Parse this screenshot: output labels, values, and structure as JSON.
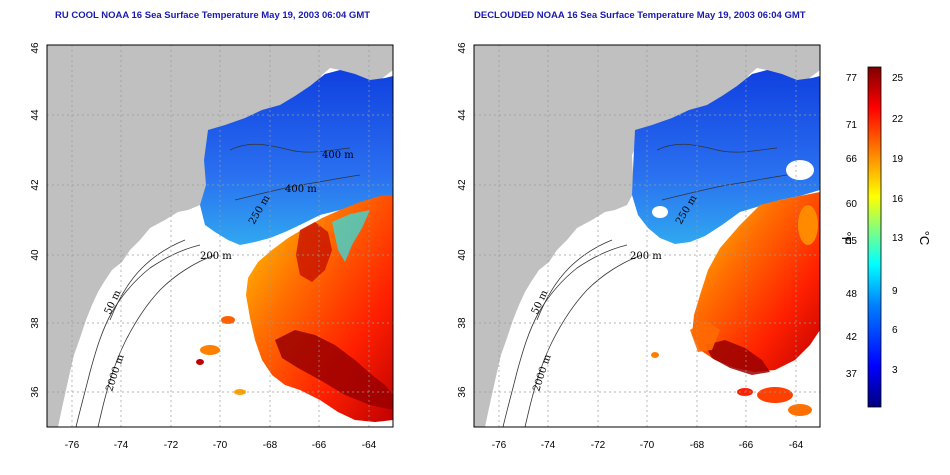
{
  "panels": [
    {
      "title": "RU COOL NOAA 16 Sea Surface Temperature May 19, 2003 06:04 GMT"
    },
    {
      "title": "DECLOUDED NOAA 16 Sea Surface Temperature May 19, 2003 06:04 GMT"
    }
  ],
  "axes": {
    "x_ticks": [
      "-76",
      "-74",
      "-72",
      "-70",
      "-68",
      "-66",
      "-64"
    ],
    "y_ticks": [
      "36",
      "38",
      "40",
      "42",
      "44",
      "46"
    ]
  },
  "contour_labels": [
    "200 m",
    "50 m",
    "2000 m",
    "400 m",
    "250 m",
    "400 m"
  ],
  "colorbar": {
    "fahrenheit_ticks": [
      "77",
      "71",
      "66",
      "60",
      "55",
      "48",
      "42",
      "37"
    ],
    "celsius_ticks": [
      "25",
      "22",
      "19",
      "16",
      "13",
      "9",
      "6",
      "3"
    ],
    "fahrenheit_unit": "°F",
    "celsius_unit": "°C",
    "colors": [
      "#00007f",
      "#0000ff",
      "#0080ff",
      "#00ffff",
      "#80ff80",
      "#ffff00",
      "#ff8000",
      "#ff0000",
      "#7f0000"
    ]
  },
  "colors": {
    "land": "#c0c0c0",
    "title": "#1a1ab0",
    "grid": "#9a9a9a"
  }
}
